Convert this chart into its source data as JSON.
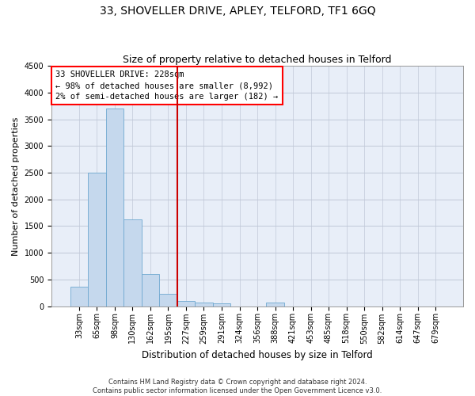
{
  "title": "33, SHOVELLER DRIVE, APLEY, TELFORD, TF1 6GQ",
  "subtitle": "Size of property relative to detached houses in Telford",
  "xlabel": "Distribution of detached houses by size in Telford",
  "ylabel": "Number of detached properties",
  "bar_labels": [
    "33sqm",
    "65sqm",
    "98sqm",
    "130sqm",
    "162sqm",
    "195sqm",
    "227sqm",
    "259sqm",
    "291sqm",
    "324sqm",
    "356sqm",
    "388sqm",
    "421sqm",
    "453sqm",
    "485sqm",
    "518sqm",
    "550sqm",
    "582sqm",
    "614sqm",
    "647sqm",
    "679sqm"
  ],
  "bar_values": [
    360,
    2500,
    3700,
    1620,
    600,
    230,
    100,
    70,
    50,
    0,
    0,
    60,
    0,
    0,
    0,
    0,
    0,
    0,
    0,
    0,
    0
  ],
  "bar_color": "#c5d8ed",
  "bar_edge_color": "#6fa8d0",
  "highlight_index": 6,
  "highlight_color": "#cc0000",
  "ylim": [
    0,
    4500
  ],
  "yticks": [
    0,
    500,
    1000,
    1500,
    2000,
    2500,
    3000,
    3500,
    4000,
    4500
  ],
  "bg_color": "#e8eef8",
  "grid_color": "#c0c8d8",
  "annotation_box_text": "33 SHOVELLER DRIVE: 228sqm\n← 98% of detached houses are smaller (8,992)\n2% of semi-detached houses are larger (182) →",
  "footer_text": "Contains HM Land Registry data © Crown copyright and database right 2024.\nContains public sector information licensed under the Open Government Licence v3.0.",
  "title_fontsize": 10,
  "subtitle_fontsize": 9,
  "xlabel_fontsize": 8.5,
  "ylabel_fontsize": 8,
  "tick_fontsize": 7,
  "annotation_fontsize": 7.5,
  "footer_fontsize": 6
}
